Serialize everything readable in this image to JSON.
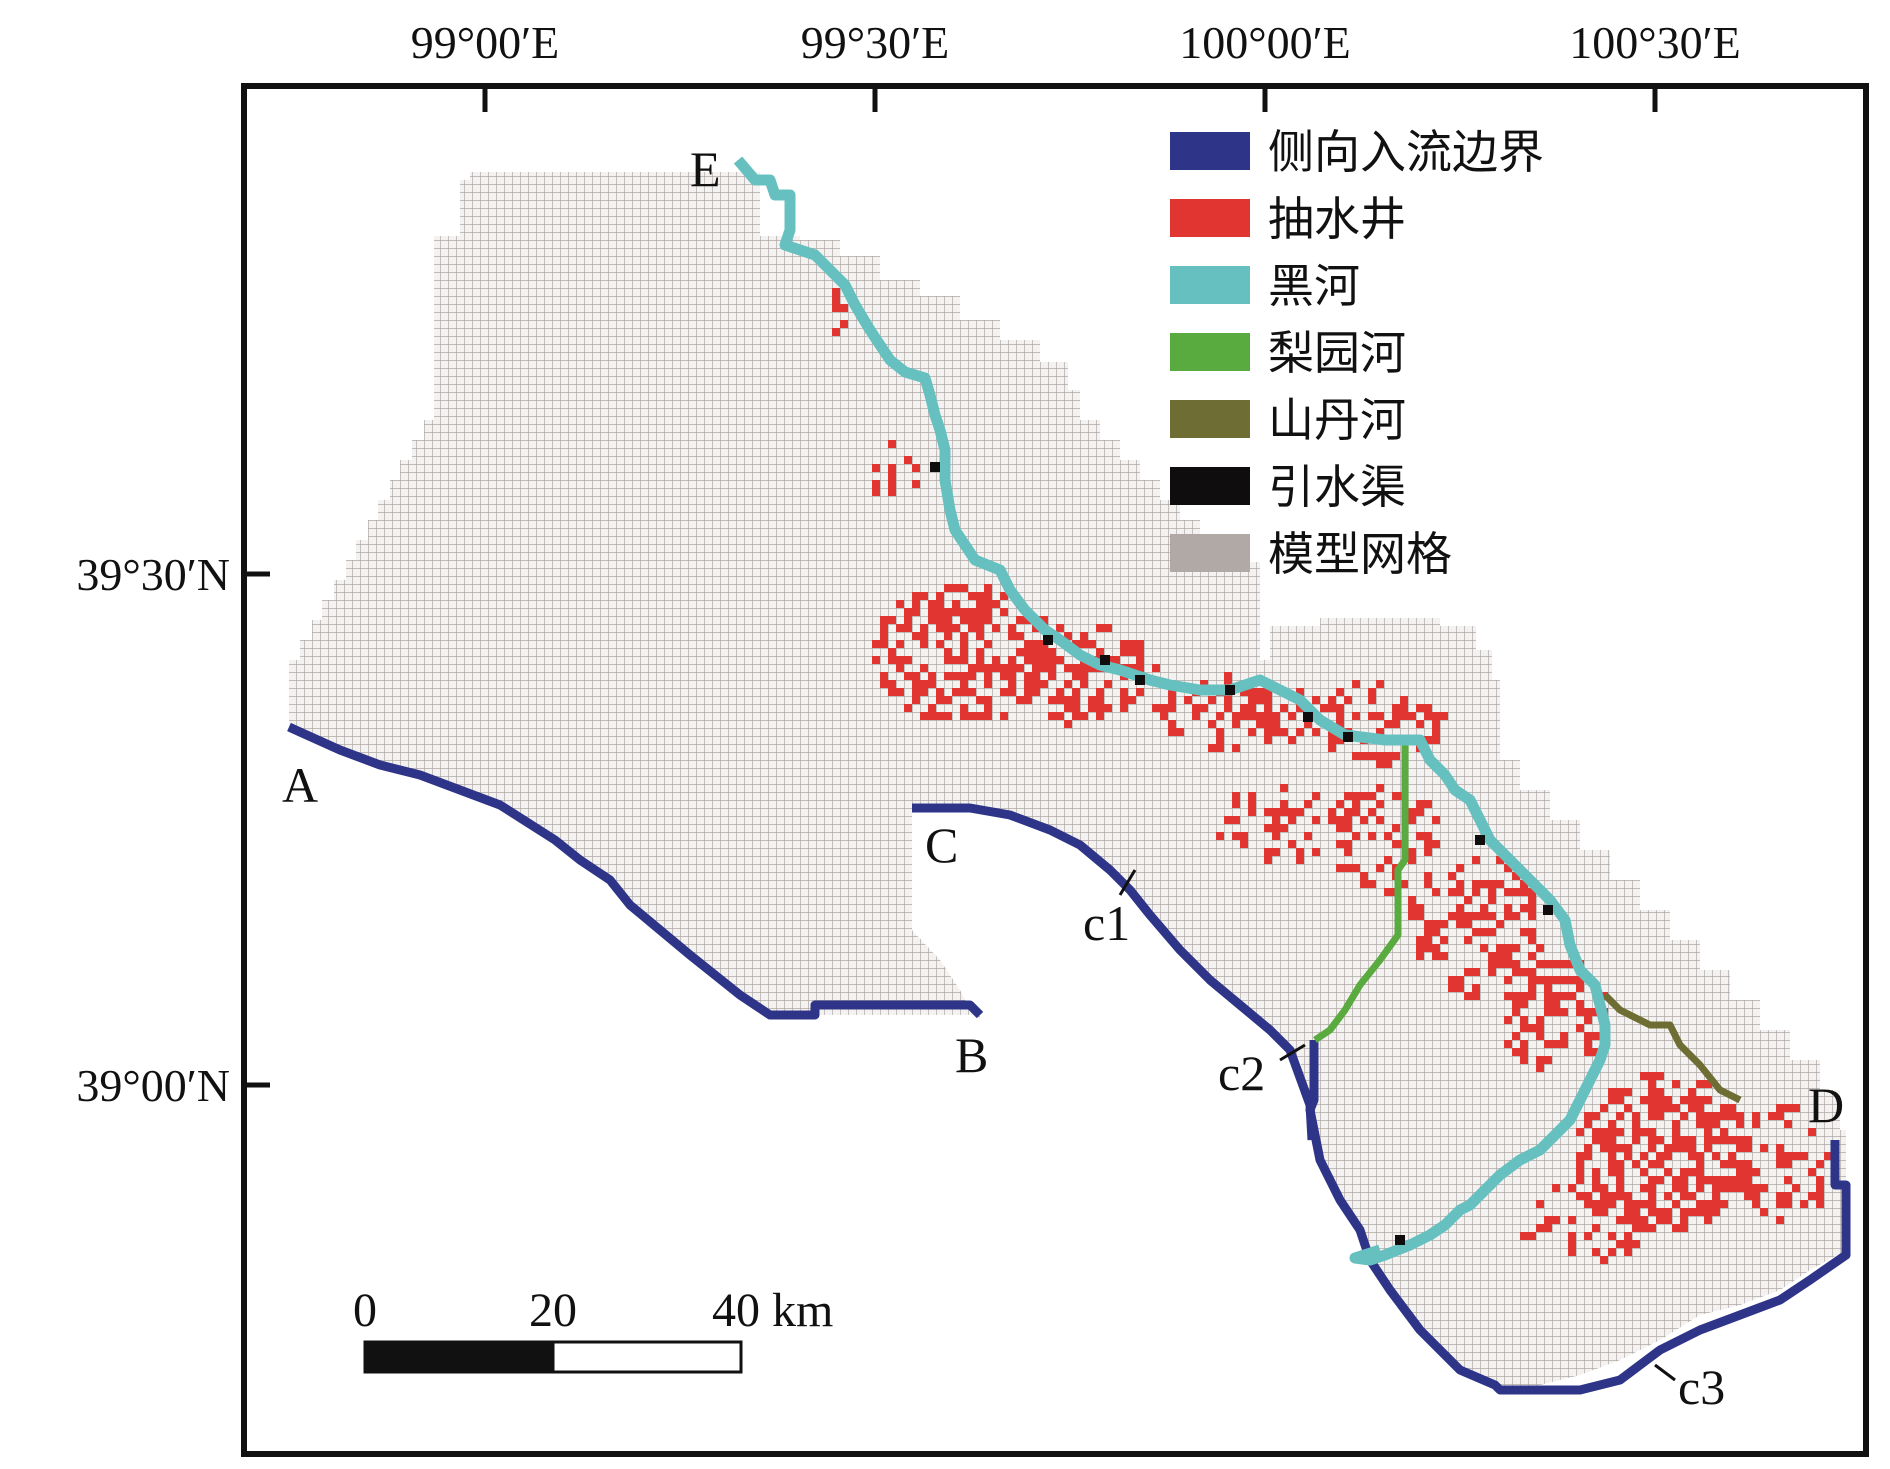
{
  "colors": {
    "boundary": "#2e3589",
    "well": "#e03531",
    "heihe": "#67c0c0",
    "liyuan": "#5aab3f",
    "shandan": "#6e6e34",
    "canal": "#0f0d0d",
    "grid_fill": "#f4f2f0",
    "grid_line": "#b0a9a6"
  },
  "axes": {
    "top_ticks": [
      "99°00′E",
      "99°30′E",
      "100°00′E",
      "100°30′E"
    ],
    "left_ticks": [
      "39°30′N",
      "39°00′N"
    ]
  },
  "legend": [
    {
      "label": "侧向入流边界",
      "color": "#2e3589",
      "icon": "boundary-swatch"
    },
    {
      "label": "抽水井",
      "color": "#e03531",
      "icon": "well-swatch"
    },
    {
      "label": "黑河",
      "color": "#67c0c0",
      "icon": "heihe-swatch"
    },
    {
      "label": "梨园河",
      "color": "#5aab3f",
      "icon": "liyuan-swatch"
    },
    {
      "label": "山丹河",
      "color": "#6e6e34",
      "icon": "shandan-swatch"
    },
    {
      "label": "引水渠",
      "color": "#0f0d0d",
      "icon": "canal-swatch"
    },
    {
      "label": "模型网格",
      "color": "#b0a9a6",
      "icon": "grid-swatch"
    }
  ],
  "points": {
    "A": "A",
    "B": "B",
    "C": "C",
    "D": "D",
    "E": "E",
    "c1": "c1",
    "c2": "c2",
    "c3": "c3"
  },
  "scale_bar": {
    "labels": [
      "0",
      "20",
      "40 km"
    ]
  }
}
